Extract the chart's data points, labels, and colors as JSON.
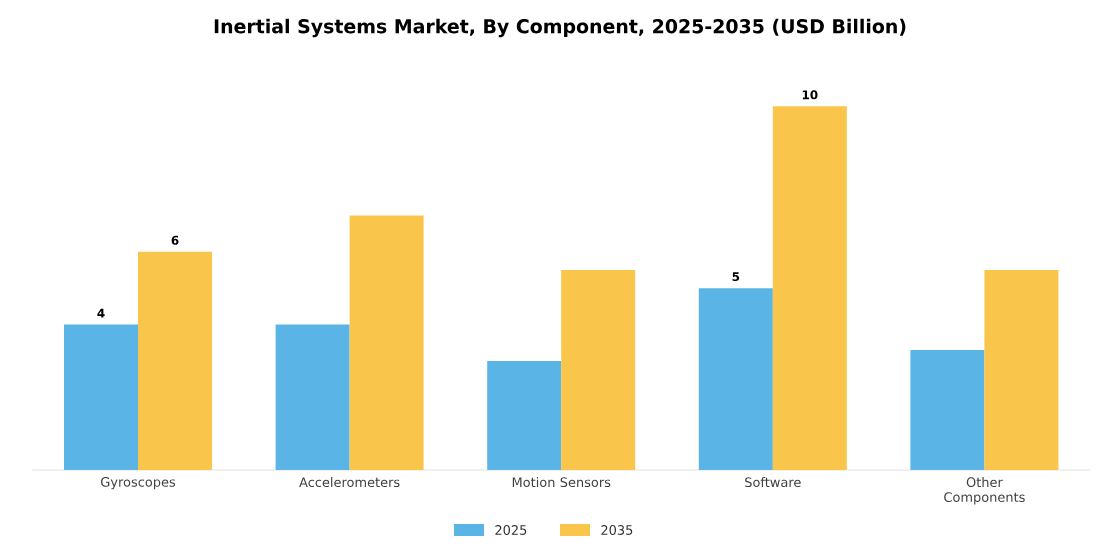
{
  "chart_data": {
    "type": "bar",
    "title": "Inertial Systems Market, By Component, 2025-2035 (USD Billion)",
    "categories": [
      "Gyroscopes",
      "Accelerometers",
      "Motion Sensors",
      "Software",
      "Other Components"
    ],
    "series": [
      {
        "name": "2025",
        "color": "#5ab4e6",
        "values": [
          4,
          4.0,
          3.0,
          5,
          3.3
        ],
        "value_labels": [
          "4",
          null,
          null,
          "5",
          null
        ]
      },
      {
        "name": "2035",
        "color": "#f9c54a",
        "values": [
          6,
          7.0,
          5.5,
          10,
          5.5
        ],
        "value_labels": [
          "6",
          null,
          null,
          "10",
          null
        ]
      }
    ],
    "legend": "bottom"
  }
}
